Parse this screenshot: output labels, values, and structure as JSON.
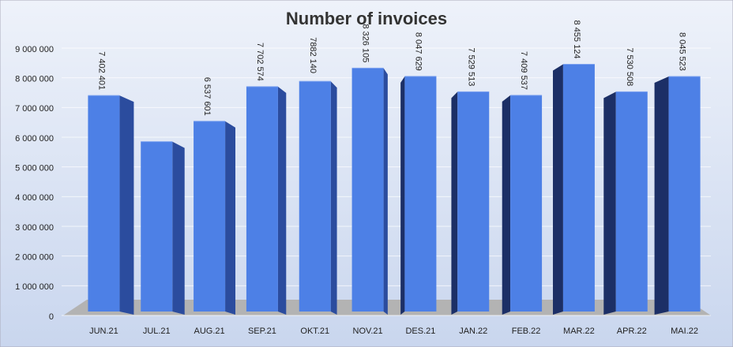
{
  "chart_data": {
    "type": "bar3d",
    "title": "Number of invoices",
    "categories": [
      "JUN.21",
      "JUL.21",
      "AUG.21",
      "SEP.21",
      "OKT.21",
      "NOV.21",
      "DES.21",
      "JAN.22",
      "FEB.22",
      "MAR.22",
      "APR.22",
      "MAI.22"
    ],
    "values": [
      7402401,
      5850000,
      6537601,
      7702574,
      7882140,
      8326105,
      8047629,
      7529513,
      7409537,
      8455124,
      7530508,
      8045523
    ],
    "value_labels": [
      "7 402 401",
      null,
      "6 537 601",
      "7 702 574",
      "7882 140",
      "8 326 105",
      "8 047 629",
      "7 529 513",
      "7 409 537",
      "8 455 124",
      "7 530 508",
      "8 045 523"
    ],
    "color": "#4d80e6",
    "ylim": [
      0,
      9000000
    ],
    "yticks": [
      0,
      {
        "value": 1000000,
        "label": "1 000 000"
      },
      {
        "value": 2000000,
        "label": "2 000 000"
      },
      {
        "value": 3000000,
        "label": "3 000 000"
      },
      {
        "value": 4000000,
        "label": "4 000 000"
      },
      {
        "value": 5000000,
        "label": "5 000 000"
      },
      {
        "value": 6000000,
        "label": "6 000 000"
      },
      {
        "value": 7000000,
        "label": "7 000 000"
      },
      {
        "value": 8000000,
        "label": "8 000 000"
      },
      {
        "value": 9000000,
        "label": "9 000 000"
      }
    ],
    "grid": true
  }
}
